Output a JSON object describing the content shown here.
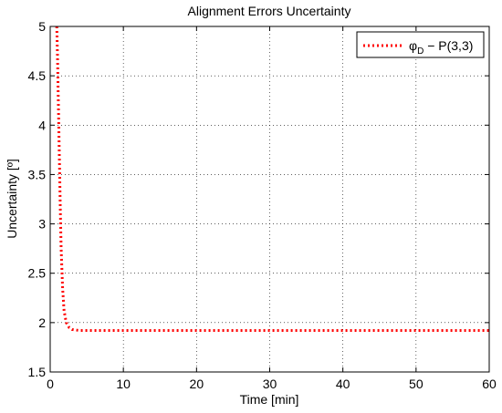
{
  "chart_data": {
    "type": "line",
    "title": "Alignment Errors Uncertainty",
    "xlabel": "Time [min]",
    "ylabel": "Uncertainty [º]",
    "xlim": [
      0,
      60
    ],
    "ylim": [
      1.5,
      5
    ],
    "xticks": [
      0,
      10,
      20,
      30,
      40,
      50,
      60
    ],
    "yticks": [
      1.5,
      2,
      2.5,
      3,
      3.5,
      4,
      4.5,
      5
    ],
    "grid": true,
    "legend_position": "top-right",
    "series": [
      {
        "name": "φD − P(3,3)",
        "color": "#ff0000",
        "line_style": "dotted",
        "x": [
          0.9,
          1.0,
          1.1,
          1.2,
          1.3,
          1.4,
          1.5,
          1.7,
          1.9,
          2.2,
          2.6,
          3.0,
          3.5,
          4.0,
          5.0,
          10,
          20,
          30,
          40,
          50,
          60
        ],
        "y": [
          5.0,
          4.7,
          4.3,
          3.9,
          3.5,
          3.1,
          2.75,
          2.35,
          2.12,
          2.0,
          1.95,
          1.93,
          1.925,
          1.92,
          1.92,
          1.92,
          1.92,
          1.92,
          1.92,
          1.92,
          1.92
        ]
      }
    ]
  },
  "legend": {
    "symbol": "φ",
    "subscript": "D",
    "rest": " − P(3,3)"
  }
}
